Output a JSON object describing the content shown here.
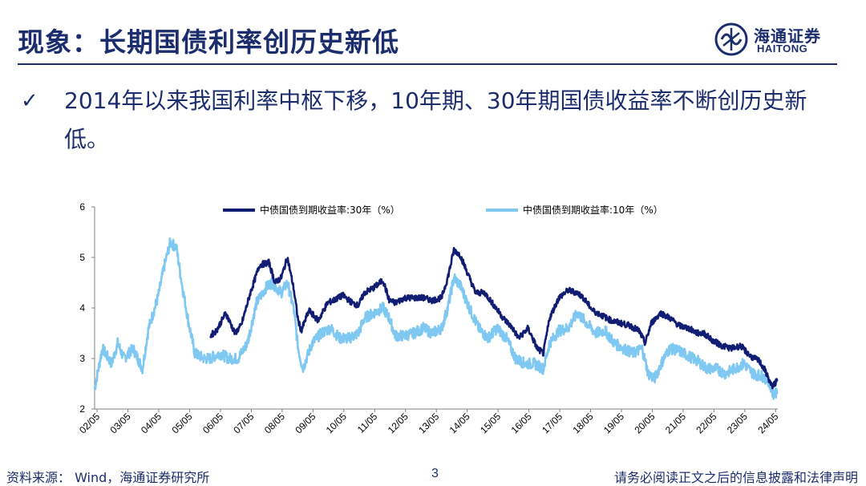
{
  "slide": {
    "title": "现象：长期国债利率创历史新低",
    "bullet": "2014年以来我国利率中枢下移，10年期、30年期国债收益率不断创历史新低。",
    "check": "✓",
    "logo_cn": "海通证券",
    "logo_en": "HAITONG",
    "footer_source": "资料来源： Wind，海通证券研究所",
    "page_number": "3",
    "footer_disclaimer": "请务必阅读正文之后的信息披露和法律声明"
  },
  "colors": {
    "primary": "#1c2d6e",
    "series_30y": "#101d73",
    "series_10y": "#7ec8f2"
  },
  "chart_data": {
    "type": "line",
    "title": "",
    "xlabel": "",
    "ylabel": "",
    "ylim": [
      2,
      6
    ],
    "yticks": [
      2,
      3,
      4,
      5,
      6
    ],
    "x_range": [
      2002.25,
      2024.4
    ],
    "xtick_labels": [
      "02/05",
      "03/05",
      "04/05",
      "05/05",
      "06/05",
      "07/05",
      "08/05",
      "09/05",
      "10/05",
      "11/05",
      "12/05",
      "13/05",
      "14/05",
      "15/05",
      "16/05",
      "17/05",
      "18/05",
      "19/05",
      "20/05",
      "21/05",
      "22/05",
      "23/05",
      "24/05"
    ],
    "series": [
      {
        "name": "中债国债到期收益率:30年（%）",
        "x": [
          2006.0,
          2006.2,
          2006.5,
          2006.8,
          2007.0,
          2007.3,
          2007.6,
          2007.9,
          2008.1,
          2008.3,
          2008.5,
          2008.7,
          2008.85,
          2008.95,
          2009.2,
          2009.5,
          2009.8,
          2010.0,
          2010.3,
          2010.6,
          2010.8,
          2011.0,
          2011.3,
          2011.6,
          2011.8,
          2012.0,
          2012.3,
          2012.6,
          2012.9,
          2013.2,
          2013.5,
          2013.7,
          2013.9,
          2014.1,
          2014.3,
          2014.6,
          2014.9,
          2015.2,
          2015.5,
          2015.8,
          2016.0,
          2016.3,
          2016.6,
          2016.8,
          2017.0,
          2017.3,
          2017.6,
          2017.9,
          2018.1,
          2018.4,
          2018.7,
          2019.0,
          2019.3,
          2019.6,
          2019.9,
          2020.1,
          2020.3,
          2020.6,
          2020.9,
          2021.2,
          2021.5,
          2021.8,
          2022.0,
          2022.3,
          2022.6,
          2022.9,
          2023.2,
          2023.5,
          2023.8,
          2024.0,
          2024.2,
          2024.38
        ],
        "values": [
          3.45,
          3.55,
          3.9,
          3.5,
          3.65,
          4.3,
          4.85,
          4.9,
          4.5,
          4.6,
          5.0,
          4.4,
          3.75,
          3.55,
          3.95,
          3.75,
          4.1,
          4.15,
          4.25,
          4.1,
          4.05,
          4.3,
          4.4,
          4.55,
          4.15,
          4.1,
          4.2,
          4.2,
          4.2,
          4.15,
          4.2,
          4.6,
          5.15,
          5.05,
          4.75,
          4.3,
          4.3,
          4.05,
          3.8,
          3.6,
          3.4,
          3.6,
          3.2,
          3.1,
          3.8,
          4.2,
          4.35,
          4.3,
          4.2,
          3.95,
          3.85,
          3.75,
          3.7,
          3.65,
          3.55,
          3.3,
          3.7,
          3.9,
          3.8,
          3.65,
          3.6,
          3.5,
          3.5,
          3.35,
          3.25,
          3.2,
          3.25,
          3.05,
          2.95,
          2.75,
          2.45,
          2.55
        ]
      },
      {
        "name": "中债国债到期收益率:10年（%）",
        "x": [
          2002.25,
          2002.5,
          2002.8,
          2003.0,
          2003.2,
          2003.5,
          2003.8,
          2004.0,
          2004.3,
          2004.5,
          2004.7,
          2004.9,
          2005.1,
          2005.3,
          2005.5,
          2005.8,
          2006.0,
          2006.3,
          2006.6,
          2006.9,
          2007.2,
          2007.5,
          2007.8,
          2008.0,
          2008.3,
          2008.5,
          2008.7,
          2008.85,
          2009.0,
          2009.3,
          2009.6,
          2009.9,
          2010.2,
          2010.5,
          2010.8,
          2011.0,
          2011.3,
          2011.6,
          2011.8,
          2012.0,
          2012.3,
          2012.6,
          2012.9,
          2013.2,
          2013.5,
          2013.7,
          2013.9,
          2014.1,
          2014.4,
          2014.7,
          2015.0,
          2015.3,
          2015.6,
          2015.9,
          2016.2,
          2016.5,
          2016.8,
          2017.0,
          2017.3,
          2017.6,
          2017.9,
          2018.2,
          2018.5,
          2018.8,
          2019.1,
          2019.4,
          2019.7,
          2020.0,
          2020.2,
          2020.4,
          2020.7,
          2020.9,
          2021.2,
          2021.5,
          2021.8,
          2022.1,
          2022.4,
          2022.7,
          2023.0,
          2023.3,
          2023.6,
          2023.9,
          2024.1,
          2024.25,
          2024.38
        ],
        "values": [
          2.4,
          3.2,
          2.9,
          3.3,
          3.0,
          3.2,
          2.8,
          3.6,
          4.2,
          4.8,
          5.3,
          5.2,
          4.4,
          3.7,
          3.1,
          3.0,
          3.0,
          3.1,
          3.0,
          3.0,
          3.3,
          4.1,
          4.4,
          4.5,
          4.3,
          4.5,
          4.0,
          3.2,
          2.8,
          3.3,
          3.5,
          3.6,
          3.4,
          3.4,
          3.5,
          3.8,
          3.9,
          4.0,
          3.8,
          3.45,
          3.45,
          3.5,
          3.6,
          3.5,
          3.6,
          4.0,
          4.6,
          4.45,
          4.0,
          3.6,
          3.4,
          3.6,
          3.4,
          3.0,
          2.9,
          2.9,
          2.8,
          3.3,
          3.55,
          3.6,
          3.9,
          3.7,
          3.5,
          3.55,
          3.3,
          3.2,
          3.1,
          3.2,
          2.7,
          2.6,
          3.0,
          3.2,
          3.15,
          3.05,
          2.95,
          2.8,
          2.8,
          2.7,
          2.8,
          2.9,
          2.7,
          2.65,
          2.55,
          2.3,
          2.3
        ]
      }
    ]
  }
}
